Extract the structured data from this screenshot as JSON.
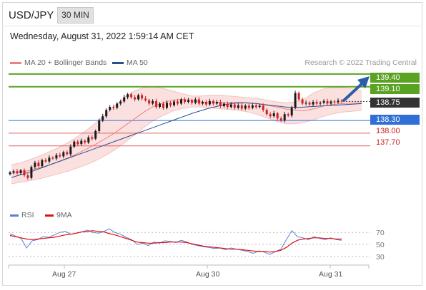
{
  "header": {
    "symbol": "USD/JPY",
    "timeframe": "30 MIN",
    "timestamp": "Wednesday, August 31, 2022 1:59:14 AM CET"
  },
  "legend": {
    "ma20": "MA 20 + Bollinger Bands",
    "ma50": "MA 50",
    "ma20_color": "#f08080",
    "ma50_color": "#2a4f8f"
  },
  "copyright": "Research © 2022 Trading Central",
  "levels": {
    "r2": "139.40",
    "r1": "139.10",
    "last": "138.75",
    "s1": "138.30",
    "s2": "138.00",
    "s3": "137.70"
  },
  "colors": {
    "resistance": "#5aa322",
    "pivot": "#2f6fd6",
    "support": "#e06060",
    "last": "#333333",
    "candle_up": "#1a1a1a",
    "candle_down": "#d02020",
    "band": "#fbe0e0",
    "arrow": "#2a5ea8",
    "rsi": "#5a7fd6",
    "rsi_ma": "#e01010"
  },
  "rsi_panel": {
    "rsi_label": "RSI",
    "ma_label": "9MA",
    "ticks": [
      "70",
      "50",
      "30"
    ]
  },
  "x_axis": {
    "labels": [
      "Aug 27",
      "Aug 30",
      "Aug 31"
    ]
  },
  "chart_data": {
    "type": "line",
    "title": "USD/JPY",
    "xlabel": "",
    "ylabel": "",
    "ylim": [
      136.8,
      139.55
    ],
    "x_ticks": [
      "Aug 27",
      "Aug 30",
      "Aug 31"
    ],
    "price_close": [
      137.07,
      137.1,
      137.05,
      137.12,
      137.0,
      136.94,
      137.2,
      137.3,
      137.22,
      137.36,
      137.33,
      137.42,
      137.4,
      137.48,
      137.45,
      137.55,
      137.5,
      137.68,
      137.8,
      137.74,
      137.82,
      137.78,
      137.9,
      137.87,
      138.05,
      138.3,
      138.4,
      138.55,
      138.62,
      138.6,
      138.7,
      138.75,
      138.85,
      138.92,
      138.85,
      138.8,
      138.9,
      138.82,
      138.78,
      138.7,
      138.76,
      138.62,
      138.7,
      138.6,
      138.72,
      138.66,
      138.75,
      138.7,
      138.8,
      138.74,
      138.78,
      138.72,
      138.8,
      138.7,
      138.74,
      138.68,
      138.76,
      138.7,
      138.74,
      138.64,
      138.7,
      138.62,
      138.68,
      138.6,
      138.66,
      138.58,
      138.65,
      138.6,
      138.66,
      138.62,
      138.65,
      138.55,
      138.45,
      138.4,
      138.47,
      138.35,
      138.3,
      138.45,
      138.42,
      138.6,
      138.95,
      138.8,
      138.7,
      138.72,
      138.68,
      138.74,
      138.7,
      138.72,
      138.76,
      138.7,
      138.75,
      138.73,
      138.77,
      138.75
    ],
    "ma50": [
      136.95,
      137.0,
      137.05,
      137.1,
      137.16,
      137.22,
      137.28,
      137.34,
      137.4,
      137.46,
      137.52,
      137.58,
      137.64,
      137.7,
      137.76,
      137.82,
      137.88,
      137.94,
      138.0,
      138.06,
      138.12,
      138.18,
      138.24,
      138.3,
      138.36,
      138.42,
      138.48,
      138.53,
      138.58,
      138.62,
      138.66,
      138.69,
      138.71,
      138.72,
      138.71,
      138.7,
      138.68,
      138.66,
      138.64,
      138.62,
      138.61,
      138.61,
      138.62,
      138.63,
      138.64,
      138.65,
      138.66,
      138.67,
      138.68,
      138.69,
      138.7
    ],
    "ma20": [
      137.05,
      137.08,
      137.12,
      137.18,
      137.25,
      137.33,
      137.42,
      137.52,
      137.63,
      137.75,
      137.88,
      138.02,
      138.18,
      138.34,
      138.5,
      138.63,
      138.72,
      138.78,
      138.8,
      138.78,
      138.74,
      138.72,
      138.72,
      138.73,
      138.73,
      138.72,
      138.7,
      138.66,
      138.62,
      138.57,
      138.54,
      138.53,
      138.58,
      138.64,
      138.68,
      138.7,
      138.71,
      138.72
    ],
    "bb_upper": [
      137.25,
      137.3,
      137.38,
      137.46,
      137.56,
      137.66,
      137.78,
      137.92,
      138.08,
      138.26,
      138.46,
      138.66,
      138.86,
      139.0,
      139.08,
      139.1,
      139.06,
      139.0,
      138.94,
      138.88,
      138.88,
      138.9,
      138.9,
      138.88,
      138.86,
      138.84,
      138.82,
      138.78,
      138.74,
      138.72,
      138.74,
      138.82,
      138.96,
      139.05,
      139.08,
      139.08,
      139.05,
      139.0
    ],
    "bb_lower": [
      136.8,
      136.84,
      136.88,
      136.92,
      136.98,
      137.04,
      137.1,
      137.18,
      137.26,
      137.36,
      137.48,
      137.62,
      137.78,
      137.96,
      138.14,
      138.3,
      138.42,
      138.52,
      138.58,
      138.62,
      138.62,
      138.6,
      138.58,
      138.56,
      138.54,
      138.5,
      138.44,
      138.36,
      138.28,
      138.22,
      138.22,
      138.26,
      138.32,
      138.4,
      138.46,
      138.5,
      138.52,
      138.54
    ],
    "levels": [
      139.4,
      139.1,
      138.75,
      138.3,
      138.0,
      137.7
    ],
    "rsi": {
      "ylim": [
        20,
        80
      ],
      "ticks": [
        70,
        50,
        30
      ],
      "rsi": [
        68,
        64,
        60,
        44,
        56,
        58,
        63,
        62,
        66,
        70,
        72,
        67,
        69,
        71,
        74,
        70,
        69,
        72,
        76,
        70,
        67,
        62,
        58,
        50,
        52,
        48,
        54,
        52,
        56,
        55,
        53,
        57,
        54,
        50,
        48,
        46,
        45,
        43,
        44,
        41,
        44,
        42,
        40,
        38,
        35,
        39,
        37,
        33,
        38,
        42,
        58,
        73,
        63,
        61,
        58,
        63,
        60,
        58,
        61,
        58,
        57
      ],
      "ma9": [
        65,
        63,
        61,
        59,
        58,
        59,
        60,
        61,
        62,
        64,
        66,
        67,
        69,
        71,
        72,
        73,
        72,
        71,
        68,
        66,
        63,
        60,
        57,
        54,
        53,
        52,
        52,
        53,
        53,
        54,
        54,
        54,
        53,
        51,
        49,
        47,
        46,
        45,
        44,
        43,
        42,
        42,
        41,
        40,
        39,
        38,
        38,
        37,
        38,
        40,
        45,
        52,
        57,
        59,
        60,
        61,
        61,
        60,
        60,
        59,
        59
      ]
    }
  }
}
